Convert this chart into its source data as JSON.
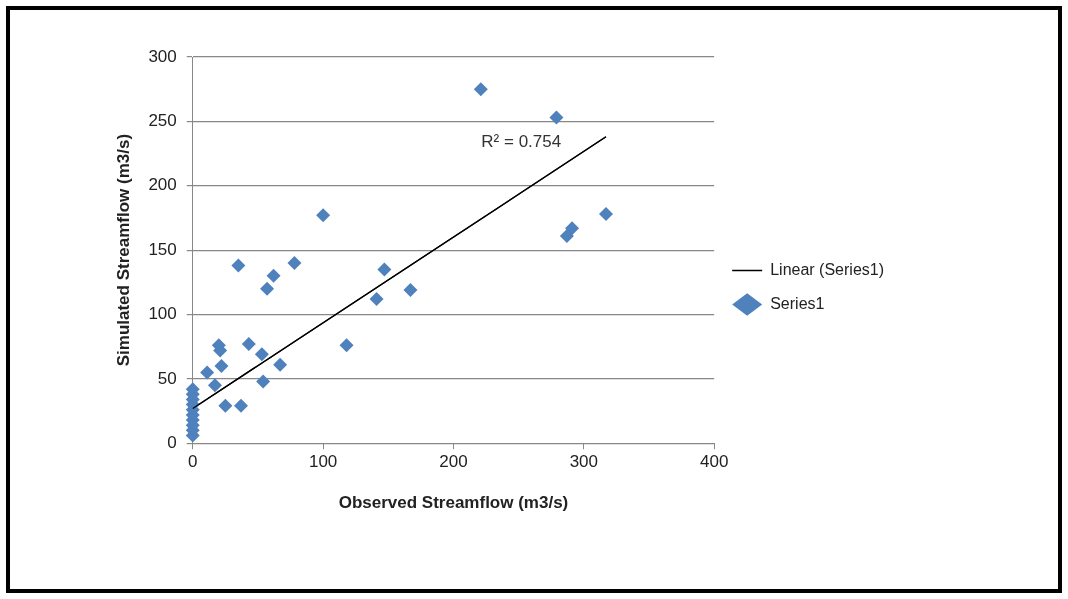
{
  "chart_data": {
    "type": "scatter",
    "xlabel": "Observed Streamflow (m3/s)",
    "ylabel": "Simulated Streamflow (m3/s)",
    "series": [
      {
        "name": "Series1",
        "type": "scatter",
        "color": "#4f81bd",
        "marker": "diamond",
        "x": [
          221,
          279,
          100,
          317,
          35,
          78,
          62,
          57,
          147,
          141,
          167,
          118,
          291,
          287,
          20,
          21,
          43,
          53,
          22,
          11,
          17,
          54,
          67,
          25,
          37,
          0,
          0,
          0,
          0,
          0,
          0,
          0,
          0,
          0,
          0
        ],
        "values": [
          275,
          253,
          177,
          178,
          138,
          140,
          130,
          120,
          135,
          112,
          119,
          76,
          167,
          161,
          76,
          72,
          77,
          69,
          60,
          55,
          45,
          48,
          61,
          29,
          29,
          42,
          38,
          34,
          30,
          26,
          22,
          18,
          14,
          10,
          6
        ]
      },
      {
        "name": "Linear (Series1)",
        "type": "line",
        "color": "#000000",
        "marker": "none",
        "line_style": "solid",
        "x": [
          0,
          317
        ],
        "values": [
          27,
          238
        ]
      }
    ],
    "annotations": [
      "R² = 0.754"
    ],
    "xlim": [
      0,
      400
    ],
    "xticks": [
      0,
      100,
      200,
      300,
      400
    ],
    "ylim": [
      0,
      300
    ],
    "yticks": [
      0,
      50,
      100,
      150,
      200,
      250,
      300
    ],
    "grid": "y",
    "legend": "right"
  }
}
